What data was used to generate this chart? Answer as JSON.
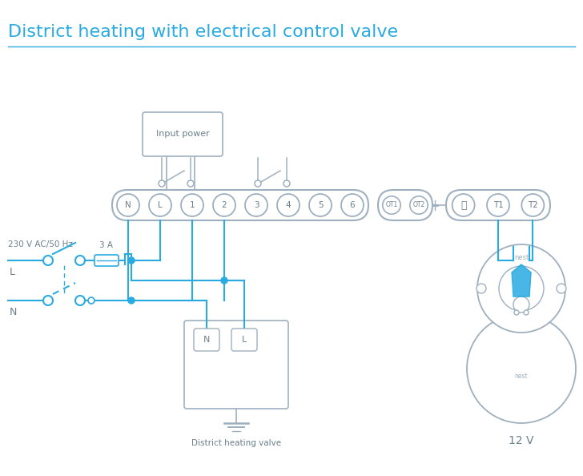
{
  "title": "District heating with electrical control valve",
  "title_color": "#29abe2",
  "title_fontsize": 16,
  "bg_color": "#ffffff",
  "line_color": "#29abe2",
  "component_color": "#9eb0bf",
  "text_color": "#6b7f8a",
  "terminal_strip_terminals": [
    "N",
    "L",
    "1",
    "2",
    "3",
    "4",
    "5",
    "6"
  ],
  "ot_terminals": [
    "OT1",
    "OT2"
  ],
  "t_terminals": [
    "⏚",
    "T1",
    "T2"
  ],
  "label_230v": "230 V AC/50 Hz",
  "label_L": "L",
  "label_N": "N",
  "label_3A": "3 A",
  "label_district": "District heating valve",
  "label_12v": "12 V",
  "label_nest": "nest",
  "label_input_power": "Input power"
}
